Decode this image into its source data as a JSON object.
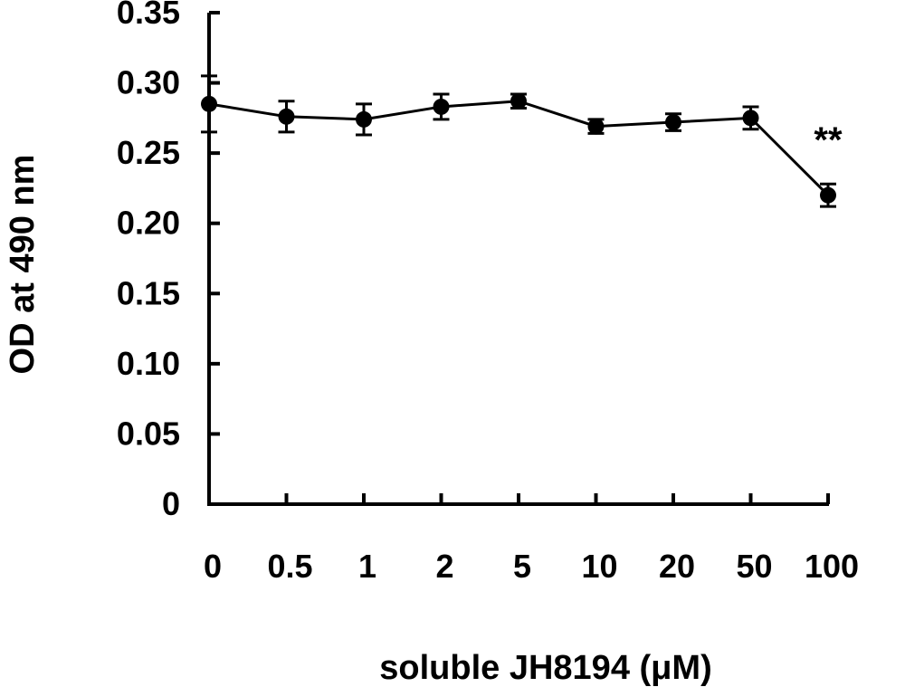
{
  "chart_data": {
    "type": "line",
    "title": "",
    "xlabel": "soluble JH8194 (μM)",
    "ylabel": "OD at 490 nm",
    "categories": [
      "0",
      "0.5",
      "1",
      "2",
      "5",
      "10",
      "20",
      "50",
      "100"
    ],
    "series": [
      {
        "values": [
          0.285,
          0.276,
          0.274,
          0.283,
          0.287,
          0.269,
          0.272,
          0.275,
          0.22
        ],
        "errors": [
          0.02,
          0.011,
          0.011,
          0.009,
          0.005,
          0.005,
          0.006,
          0.008,
          0.008
        ],
        "color": "#000000"
      }
    ],
    "ylim": [
      0,
      0.35
    ],
    "yticks": [
      "0",
      "0.05",
      "0.10",
      "0.15",
      "0.20",
      "0.25",
      "0.30",
      "0.35"
    ],
    "yticks_values": [
      0,
      0.05,
      0.1,
      0.15,
      0.2,
      0.25,
      0.3,
      0.35
    ],
    "grid": false,
    "annotations": [
      {
        "category": "100",
        "text": "**"
      }
    ]
  }
}
